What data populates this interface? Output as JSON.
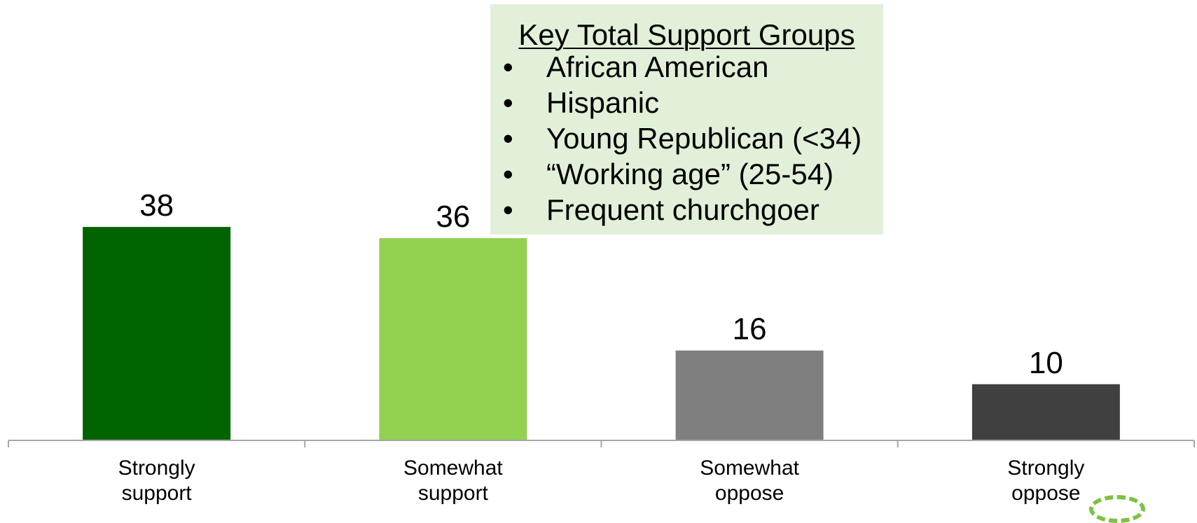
{
  "chart_data": {
    "type": "bar",
    "categories": [
      "Strongly support",
      "Somewhat support",
      "Somewhat oppose",
      "Strongly oppose"
    ],
    "category_lines": [
      [
        "Strongly",
        "support"
      ],
      [
        "Somewhat",
        "support"
      ],
      [
        "Somewhat",
        "oppose"
      ],
      [
        "Strongly",
        "oppose"
      ]
    ],
    "values": [
      38,
      36,
      16,
      10
    ],
    "colors": [
      "#006400",
      "#92d050",
      "#7f7f7f",
      "#404040"
    ],
    "ylim": [
      0,
      44
    ],
    "grid": false,
    "legend": "none"
  },
  "key_box": {
    "title": "Key Total Support  Groups",
    "bullet": "•",
    "items": [
      "African American",
      "Hispanic",
      "Young Republican (<34)",
      "“Working age” (25-54)",
      "Frequent churchgoer"
    ]
  },
  "colors": {
    "key_box_bg": "#e2f0d9",
    "axis": "#a6a6a6",
    "decoration": "#7dc242"
  }
}
